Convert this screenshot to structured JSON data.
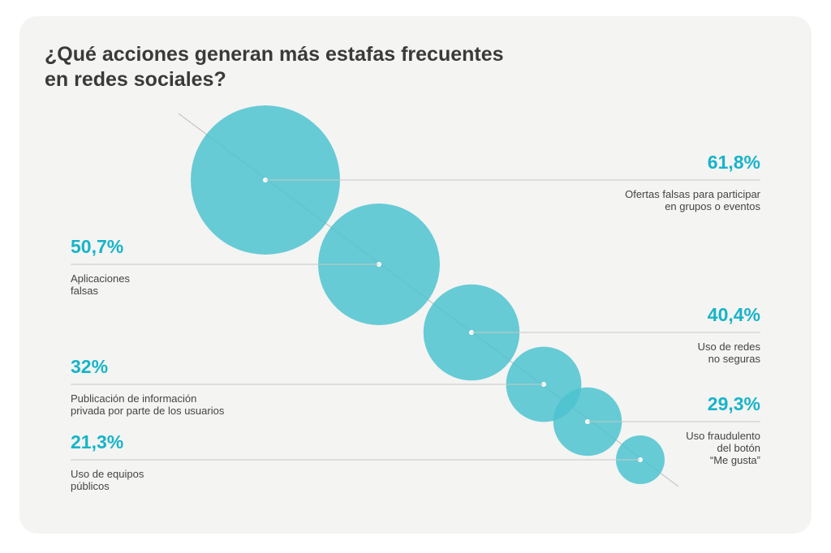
{
  "chart_data": {
    "type": "bubble",
    "title": "¿Qué acciones generan más estafas frecuentes\nen redes sociales?",
    "categories": [
      "Ofertas falsas para participar\nen grupos o eventos",
      "Aplicaciones\nfalsas",
      "Uso de redes\nno seguras",
      "Publicación de información\nprivada por parte de los usuarios",
      "Uso fraudulento\ndel botón\n“Me gusta”",
      "Uso de equipos\npúblicos"
    ],
    "values": [
      61.8,
      50.7,
      40.4,
      32,
      29.3,
      21.3
    ],
    "value_labels": [
      "61,8%",
      "50,7%",
      "40,4%",
      "32%",
      "29,3%",
      "21,3%"
    ],
    "color": "#4cc3cf",
    "label_color": "#17b4c8"
  }
}
